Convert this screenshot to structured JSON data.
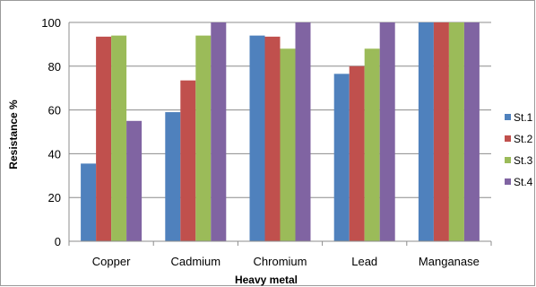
{
  "chart_data": {
    "type": "bar",
    "title": "",
    "xlabel": "Heavy metal",
    "ylabel": "Resistance %",
    "categories": [
      "Copper",
      "Cadmium",
      "Chromium",
      "Lead",
      "Manganase"
    ],
    "series": [
      {
        "name": "St.1",
        "color": "#4f81bd",
        "values": [
          35.5,
          59,
          94,
          76.5,
          100
        ]
      },
      {
        "name": "St.2",
        "color": "#c0504d",
        "values": [
          93.5,
          73.5,
          93.5,
          80,
          100
        ]
      },
      {
        "name": "St.3",
        "color": "#9bbb59",
        "values": [
          94,
          94,
          88,
          88,
          100
        ]
      },
      {
        "name": "St.4",
        "color": "#8064a2",
        "values": [
          55,
          100,
          100,
          100,
          100
        ]
      }
    ],
    "yticks": [
      0,
      20,
      40,
      60,
      80,
      100
    ],
    "ylim": [
      0,
      100
    ],
    "grid": true,
    "legend_position": "right"
  }
}
